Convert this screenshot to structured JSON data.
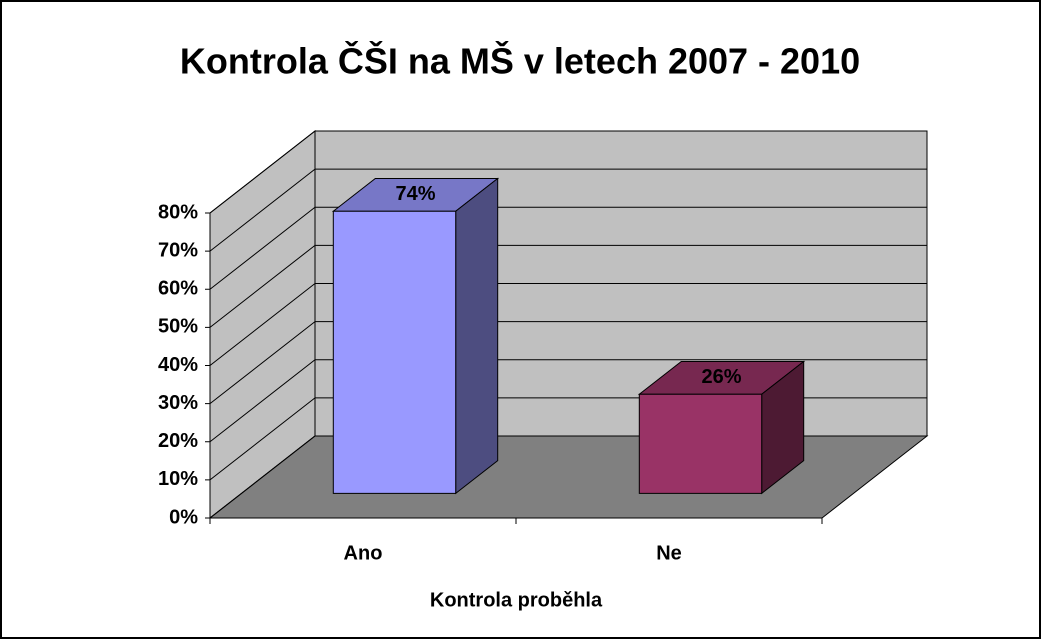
{
  "chart_data": {
    "type": "bar3d",
    "title": "Kontrola ČŠI na MŠ v letech 2007 - 2010",
    "categories": [
      "Ano",
      "Ne"
    ],
    "values": [
      74,
      26
    ],
    "value_labels": [
      "74%",
      "26%"
    ],
    "colors": [
      "#9999ff",
      "#993366"
    ],
    "xlabel": "Kontrola proběhla",
    "ylim": [
      0,
      80
    ],
    "yticks": [
      {
        "value": 0,
        "label": "0%"
      },
      {
        "value": 10,
        "label": "10%"
      },
      {
        "value": 20,
        "label": "20%"
      },
      {
        "value": 30,
        "label": "30%"
      },
      {
        "value": 40,
        "label": "40%"
      },
      {
        "value": 50,
        "label": "50%"
      },
      {
        "value": 60,
        "label": "60%"
      },
      {
        "value": 70,
        "label": "70%"
      },
      {
        "value": 80,
        "label": "80%"
      }
    ],
    "grid": true
  }
}
